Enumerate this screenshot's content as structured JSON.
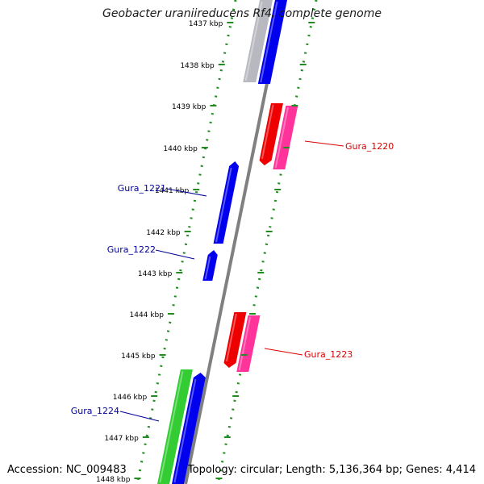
{
  "title": "Geobacter uraniireducens Rf4, complete genome",
  "footer": {
    "accession": "Accession: NC_009483",
    "summary": "Topology: circular; Length: 5,136,364 bp; Genes: 4,414"
  },
  "ticks": [
    {
      "label": "1437 kbp"
    },
    {
      "label": "1438 kbp"
    },
    {
      "label": "1439 kbp"
    },
    {
      "label": "1440 kbp"
    },
    {
      "label": "1441 kbp"
    },
    {
      "label": "1442 kbp"
    },
    {
      "label": "1443 kbp"
    },
    {
      "label": "1444 kbp"
    },
    {
      "label": "1445 kbp"
    },
    {
      "label": "1446 kbp"
    },
    {
      "label": "1447 kbp"
    },
    {
      "label": "1448 kbp"
    }
  ],
  "gene_labels": [
    {
      "name": "Gura_1220",
      "color": "#dd0000"
    },
    {
      "name": "Gura_1221",
      "color": "#000099"
    },
    {
      "name": "Gura_1222",
      "color": "#000099"
    },
    {
      "name": "Gura_1223",
      "color": "#dd0000"
    },
    {
      "name": "Gura_1224",
      "color": "#000099"
    }
  ],
  "colors": {
    "forward_cds": "#0000ee",
    "reverse_cds": "#ee0000",
    "reverse_cds_alt": "#ff3399",
    "rna": "#33cc33",
    "grey_feature": "#b8b8c0",
    "backbone": "#808080",
    "dotted_ring": "#228b22"
  }
}
